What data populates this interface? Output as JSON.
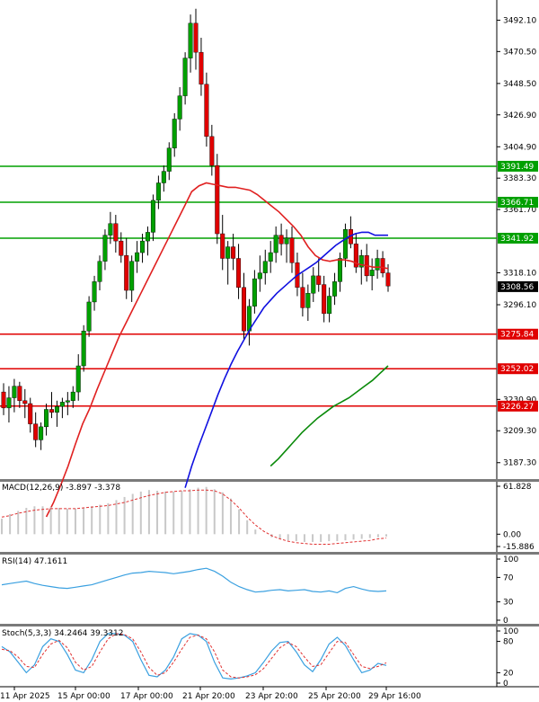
{
  "chart_data": {
    "type": "candlestick",
    "main": {
      "y_ticks": [
        "3492.10",
        "3470.50",
        "3448.50",
        "3426.90",
        "3404.90",
        "3383.30",
        "3361.70",
        "3318.10",
        "3296.10",
        "3230.90",
        "3209.30",
        "3187.30"
      ],
      "candles": [
        [
          3236,
          3242,
          3220,
          3225
        ],
        [
          3225,
          3240,
          3215,
          3232
        ],
        [
          3232,
          3245,
          3222,
          3240
        ],
        [
          3240,
          3243,
          3225,
          3230
        ],
        [
          3230,
          3238,
          3218,
          3228
        ],
        [
          3228,
          3232,
          3208,
          3214
        ],
        [
          3214,
          3222,
          3198,
          3203
        ],
        [
          3203,
          3215,
          3196,
          3212
        ],
        [
          3212,
          3228,
          3206,
          3224
        ],
        [
          3224,
          3236,
          3218,
          3222
        ],
        [
          3222,
          3230,
          3212,
          3226
        ],
        [
          3226,
          3232,
          3218,
          3229
        ],
        [
          3229,
          3236,
          3220,
          3230
        ],
        [
          3230,
          3240,
          3225,
          3236
        ],
        [
          3236,
          3262,
          3230,
          3254
        ],
        [
          3254,
          3282,
          3250,
          3278
        ],
        [
          3278,
          3302,
          3274,
          3298
        ],
        [
          3298,
          3316,
          3292,
          3312
        ],
        [
          3312,
          3330,
          3306,
          3326
        ],
        [
          3326,
          3348,
          3320,
          3344
        ],
        [
          3344,
          3360,
          3338,
          3352
        ],
        [
          3352,
          3358,
          3332,
          3340
        ],
        [
          3340,
          3346,
          3325,
          3330
        ],
        [
          3330,
          3342,
          3300,
          3306
        ],
        [
          3306,
          3330,
          3298,
          3326
        ],
        [
          3326,
          3340,
          3318,
          3332
        ],
        [
          3332,
          3345,
          3325,
          3340
        ],
        [
          3340,
          3350,
          3330,
          3346
        ],
        [
          3346,
          3372,
          3340,
          3368
        ],
        [
          3368,
          3385,
          3362,
          3380
        ],
        [
          3380,
          3392,
          3374,
          3388
        ],
        [
          3388,
          3408,
          3382,
          3404
        ],
        [
          3404,
          3428,
          3398,
          3424
        ],
        [
          3424,
          3446,
          3416,
          3440
        ],
        [
          3440,
          3470,
          3434,
          3466
        ],
        [
          3466,
          3496,
          3456,
          3490
        ],
        [
          3490,
          3500,
          3458,
          3470
        ],
        [
          3470,
          3480,
          3440,
          3448
        ],
        [
          3448,
          3456,
          3405,
          3412
        ],
        [
          3412,
          3420,
          3385,
          3392
        ],
        [
          3392,
          3400,
          3338,
          3345
        ],
        [
          3345,
          3358,
          3320,
          3328
        ],
        [
          3328,
          3340,
          3310,
          3336
        ],
        [
          3336,
          3345,
          3320,
          3328
        ],
        [
          3328,
          3338,
          3300,
          3308
        ],
        [
          3308,
          3318,
          3272,
          3278
        ],
        [
          3278,
          3300,
          3268,
          3295
        ],
        [
          3295,
          3320,
          3290,
          3314
        ],
        [
          3314,
          3330,
          3305,
          3318
        ],
        [
          3318,
          3334,
          3310,
          3326
        ],
        [
          3326,
          3340,
          3318,
          3332
        ],
        [
          3332,
          3350,
          3325,
          3344
        ],
        [
          3344,
          3352,
          3330,
          3338
        ],
        [
          3338,
          3348,
          3325,
          3342
        ],
        [
          3342,
          3350,
          3318,
          3325
        ],
        [
          3325,
          3332,
          3302,
          3308
        ],
        [
          3308,
          3318,
          3288,
          3294
        ],
        [
          3294,
          3310,
          3285,
          3304
        ],
        [
          3304,
          3322,
          3298,
          3316
        ],
        [
          3316,
          3328,
          3305,
          3310
        ],
        [
          3310,
          3316,
          3284,
          3290
        ],
        [
          3290,
          3308,
          3284,
          3302
        ],
        [
          3302,
          3318,
          3296,
          3312
        ],
        [
          3312,
          3332,
          3305,
          3328
        ],
        [
          3328,
          3352,
          3322,
          3348
        ],
        [
          3348,
          3357,
          3335,
          3338
        ],
        [
          3338,
          3345,
          3318,
          3322
        ],
        [
          3322,
          3334,
          3310,
          3330
        ],
        [
          3330,
          3338,
          3312,
          3316
        ],
        [
          3316,
          3328,
          3306,
          3320
        ],
        [
          3320,
          3334,
          3314,
          3328
        ],
        [
          3328,
          3333,
          3315,
          3318
        ],
        [
          3318,
          3324,
          3305,
          3309
        ]
      ],
      "ma_fast": [
        3150,
        3160,
        3172,
        3185,
        3200,
        3214,
        3225,
        3238,
        3250,
        3262,
        3274,
        3284,
        3294,
        3304,
        3314,
        3324,
        3334,
        3344,
        3354,
        3364,
        3374,
        3378,
        3380,
        3379,
        3378,
        3377,
        3377,
        3376,
        3375,
        3372,
        3368,
        3364,
        3360,
        3355,
        3350,
        3344,
        3336,
        3330,
        3327,
        3326,
        3327,
        3327,
        3326,
        3324,
        3323,
        3322,
        3322,
        3321
      ],
      "ma_mid": [
        3170,
        3185,
        3198,
        3210,
        3222,
        3234,
        3245,
        3255,
        3264,
        3272,
        3280,
        3287,
        3294,
        3299,
        3304,
        3308,
        3312,
        3316,
        3319,
        3322,
        3325,
        3329,
        3333,
        3337,
        3340,
        3343,
        3345,
        3346,
        3346,
        3344,
        3344,
        3344
      ],
      "ma_slow": [
        3185,
        3190,
        3196,
        3202,
        3208,
        3213,
        3218,
        3222,
        3226,
        3229,
        3232,
        3236,
        3240,
        3244,
        3249,
        3254
      ],
      "levels": [
        {
          "label": "3391.49",
          "value": 3391.49,
          "color": "#00a000"
        },
        {
          "label": "3366.71",
          "value": 3366.71,
          "color": "#00a000"
        },
        {
          "label": "3341.92",
          "value": 3341.92,
          "color": "#00a000"
        },
        {
          "label": "3275.84",
          "value": 3275.84,
          "color": "#e00000"
        },
        {
          "label": "3252.02",
          "value": 3252.02,
          "color": "#e00000"
        },
        {
          "label": "3226.27",
          "value": 3226.27,
          "color": "#e00000"
        }
      ],
      "current_price_label": "3308.56",
      "current_price": 3308.56
    },
    "macd": {
      "title": "MACD(12,26,9) -3.897 -3.378",
      "y_ticks": [
        "61.828",
        "0.00",
        "-15.886"
      ],
      "hist": [
        20,
        26,
        30,
        34,
        36,
        36,
        35,
        34,
        33,
        33,
        34,
        36,
        38,
        40,
        44,
        48,
        52,
        55,
        57,
        56,
        55,
        55,
        56,
        58,
        60,
        61,
        58,
        54,
        46,
        32,
        18,
        6,
        0,
        -4,
        -6,
        -8,
        -9,
        -10,
        -10,
        -10,
        -9,
        -9,
        -8,
        -7,
        -6,
        -5,
        -4,
        -3
      ],
      "signal": [
        22,
        24,
        27,
        29,
        31,
        32,
        33,
        33,
        33,
        33,
        34,
        35,
        36,
        37,
        39,
        41,
        44,
        47,
        50,
        52,
        54,
        55,
        56,
        56,
        57,
        57,
        56,
        52,
        44,
        34,
        22,
        12,
        4,
        -2,
        -6,
        -9,
        -11,
        -12,
        -13,
        -13,
        -13,
        -12,
        -11,
        -10,
        -9,
        -8,
        -6,
        -5
      ]
    },
    "rsi": {
      "title": "RSI(14) 47.1611",
      "y_ticks": [
        "100",
        "70",
        "30",
        "0"
      ],
      "values": [
        58,
        60,
        62,
        64,
        60,
        57,
        55,
        53,
        52,
        54,
        56,
        58,
        62,
        66,
        70,
        74,
        77,
        78,
        80,
        79,
        78,
        76,
        78,
        80,
        83,
        85,
        80,
        72,
        62,
        55,
        50,
        46,
        47,
        49,
        50,
        48,
        49,
        50,
        47,
        46,
        48,
        45,
        52,
        55,
        51,
        48,
        47,
        48
      ]
    },
    "stoch": {
      "title": "Stoch(5,3,3) 34.2464 39.3312",
      "y_ticks": [
        "100",
        "80",
        "20",
        "0"
      ],
      "k": [
        70,
        60,
        40,
        20,
        35,
        70,
        85,
        80,
        55,
        25,
        20,
        45,
        80,
        95,
        95,
        92,
        80,
        45,
        15,
        12,
        25,
        50,
        85,
        95,
        92,
        80,
        40,
        10,
        8,
        10,
        14,
        20,
        40,
        62,
        78,
        80,
        60,
        35,
        22,
        45,
        75,
        88,
        72,
        45,
        20,
        25,
        38,
        34
      ],
      "d": [
        65,
        62,
        50,
        32,
        30,
        55,
        75,
        82,
        68,
        40,
        25,
        32,
        60,
        85,
        95,
        93,
        85,
        60,
        30,
        15,
        20,
        40,
        65,
        88,
        92,
        85,
        60,
        25,
        12,
        10,
        12,
        16,
        28,
        48,
        68,
        78,
        70,
        50,
        32,
        35,
        58,
        80,
        78,
        55,
        32,
        28,
        32,
        39
      ]
    },
    "x_labels": [
      "11 Apr 2025",
      "15 Apr 00:00",
      "17 Apr 00:00",
      "21 Apr 20:00",
      "23 Apr 20:00",
      "25 Apr 20:00",
      "29 Apr 16:00"
    ]
  },
  "colors": {
    "bull": "#00a000",
    "bear": "#e00000",
    "wick": "#000000",
    "ma_fast": "#e02020",
    "ma_mid": "#1010e0",
    "ma_slow": "#0a8a0a",
    "macd_hist": "#c8c8c8",
    "macd_signal": "#e03030",
    "rsi": "#3aa0e0",
    "stoch_k": "#3aa0e0",
    "stoch_d": "#e03030"
  }
}
